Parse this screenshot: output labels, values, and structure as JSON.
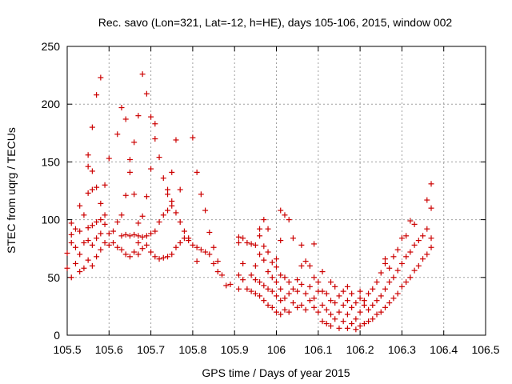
{
  "chart_data": {
    "type": "scatter",
    "title": "Rec. savo (Lon=321, Lat=-12, h=HE), days 105-106, 2015, window 002",
    "xlabel": "GPS time / Days of year 2015",
    "ylabel": "STEC from uqrg / TECUs",
    "xlim": [
      105.5,
      106.5
    ],
    "ylim": [
      0,
      250
    ],
    "x_ticks": [
      105.5,
      105.6,
      105.7,
      105.8,
      105.9,
      106,
      106.1,
      106.2,
      106.3,
      106.4,
      106.5
    ],
    "x_tick_labels": [
      "105.5",
      "105.6",
      "105.7",
      "105.8",
      "105.9",
      "106",
      "106.1",
      "106.2",
      "106.3",
      "106.4",
      "106.5"
    ],
    "y_ticks": [
      0,
      50,
      100,
      150,
      200,
      250
    ],
    "y_tick_labels": [
      "0",
      "50",
      "100",
      "150",
      "200",
      "250"
    ],
    "grid": true,
    "marker": "+",
    "color": "#cc0000",
    "series": [
      {
        "points": [
          [
            105.5,
            71
          ],
          [
            105.5,
            58
          ],
          [
            105.51,
            50
          ],
          [
            105.51,
            80
          ],
          [
            105.51,
            87
          ],
          [
            105.51,
            97
          ],
          [
            105.52,
            62
          ],
          [
            105.52,
            76
          ],
          [
            105.52,
            92
          ],
          [
            105.53,
            55
          ],
          [
            105.53,
            70
          ],
          [
            105.53,
            90
          ],
          [
            105.53,
            112
          ],
          [
            105.54,
            58
          ],
          [
            105.54,
            80
          ],
          [
            105.54,
            104
          ],
          [
            105.55,
            65
          ],
          [
            105.55,
            82
          ],
          [
            105.55,
            93
          ],
          [
            105.55,
            123
          ],
          [
            105.55,
            146
          ],
          [
            105.55,
            156
          ],
          [
            105.56,
            60
          ],
          [
            105.56,
            78
          ],
          [
            105.56,
            95
          ],
          [
            105.56,
            126
          ],
          [
            105.56,
            142
          ],
          [
            105.56,
            180
          ],
          [
            105.57,
            68
          ],
          [
            105.57,
            84
          ],
          [
            105.57,
            98
          ],
          [
            105.57,
            128
          ],
          [
            105.57,
            208
          ],
          [
            105.58,
            74
          ],
          [
            105.58,
            88
          ],
          [
            105.58,
            100
          ],
          [
            105.58,
            114
          ],
          [
            105.58,
            223
          ],
          [
            105.59,
            80
          ],
          [
            105.59,
            96
          ],
          [
            105.59,
            104
          ],
          [
            105.59,
            130
          ],
          [
            105.6,
            78
          ],
          [
            105.6,
            88
          ],
          [
            105.6,
            153
          ],
          [
            105.61,
            80
          ],
          [
            105.61,
            90
          ],
          [
            105.62,
            76
          ],
          [
            105.62,
            98
          ],
          [
            105.62,
            174
          ],
          [
            105.63,
            74
          ],
          [
            105.63,
            86
          ],
          [
            105.63,
            104
          ],
          [
            105.63,
            197
          ],
          [
            105.64,
            70
          ],
          [
            105.64,
            87
          ],
          [
            105.64,
            121
          ],
          [
            105.64,
            187
          ],
          [
            105.65,
            68
          ],
          [
            105.65,
            86
          ],
          [
            105.65,
            141
          ],
          [
            105.65,
            152
          ],
          [
            105.66,
            72
          ],
          [
            105.66,
            87
          ],
          [
            105.66,
            122
          ],
          [
            105.66,
            167
          ],
          [
            105.67,
            70
          ],
          [
            105.67,
            80
          ],
          [
            105.67,
            86
          ],
          [
            105.67,
            97
          ],
          [
            105.67,
            190
          ],
          [
            105.68,
            75
          ],
          [
            105.68,
            85
          ],
          [
            105.68,
            103
          ],
          [
            105.68,
            226
          ],
          [
            105.69,
            78
          ],
          [
            105.69,
            86
          ],
          [
            105.69,
            120
          ],
          [
            105.69,
            209
          ],
          [
            105.7,
            72
          ],
          [
            105.7,
            88
          ],
          [
            105.7,
            144
          ],
          [
            105.7,
            189
          ],
          [
            105.71,
            68
          ],
          [
            105.71,
            90
          ],
          [
            105.71,
            170
          ],
          [
            105.71,
            183
          ],
          [
            105.72,
            66
          ],
          [
            105.72,
            98
          ],
          [
            105.72,
            154
          ],
          [
            105.73,
            67
          ],
          [
            105.73,
            104
          ],
          [
            105.73,
            136
          ],
          [
            105.74,
            68
          ],
          [
            105.74,
            108
          ],
          [
            105.74,
            126
          ],
          [
            105.74,
            122
          ],
          [
            105.75,
            70
          ],
          [
            105.75,
            112
          ],
          [
            105.75,
            116
          ],
          [
            105.75,
            141
          ],
          [
            105.76,
            76
          ],
          [
            105.76,
            106
          ],
          [
            105.76,
            169
          ],
          [
            105.77,
            80
          ],
          [
            105.77,
            98
          ],
          [
            105.77,
            126
          ],
          [
            105.78,
            84
          ],
          [
            105.78,
            90
          ],
          [
            105.79,
            82
          ],
          [
            105.79,
            84
          ],
          [
            105.8,
            78
          ],
          [
            105.8,
            171
          ],
          [
            105.81,
            64
          ],
          [
            105.81,
            76
          ],
          [
            105.81,
            141
          ],
          [
            105.82,
            74
          ],
          [
            105.82,
            122
          ],
          [
            105.83,
            72
          ],
          [
            105.83,
            108
          ],
          [
            105.84,
            70
          ],
          [
            105.84,
            89
          ],
          [
            105.85,
            62
          ],
          [
            105.85,
            76
          ],
          [
            105.86,
            64
          ],
          [
            105.86,
            55
          ],
          [
            105.87,
            52
          ],
          [
            105.88,
            43
          ],
          [
            105.89,
            44
          ],
          [
            105.91,
            40
          ],
          [
            105.91,
            52
          ],
          [
            105.91,
            80
          ],
          [
            105.91,
            85
          ],
          [
            105.92,
            48
          ],
          [
            105.92,
            62
          ],
          [
            105.92,
            84
          ],
          [
            105.93,
            40
          ],
          [
            105.93,
            80
          ],
          [
            105.94,
            38
          ],
          [
            105.94,
            52
          ],
          [
            105.94,
            79
          ],
          [
            105.95,
            36
          ],
          [
            105.95,
            48
          ],
          [
            105.95,
            60
          ],
          [
            105.95,
            78
          ],
          [
            105.96,
            34
          ],
          [
            105.96,
            46
          ],
          [
            105.96,
            70
          ],
          [
            105.96,
            86
          ],
          [
            105.96,
            92
          ],
          [
            105.97,
            30
          ],
          [
            105.97,
            43
          ],
          [
            105.97,
            65
          ],
          [
            105.97,
            77
          ],
          [
            105.97,
            100
          ],
          [
            105.98,
            26
          ],
          [
            105.98,
            40
          ],
          [
            105.98,
            55
          ],
          [
            105.98,
            72
          ],
          [
            105.98,
            92
          ],
          [
            105.99,
            24
          ],
          [
            105.99,
            38
          ],
          [
            105.99,
            50
          ],
          [
            105.99,
            63
          ],
          [
            106.0,
            20
          ],
          [
            106.0,
            34
          ],
          [
            106.0,
            46
          ],
          [
            106.0,
            59
          ],
          [
            106.0,
            66
          ],
          [
            106.01,
            18
          ],
          [
            106.01,
            30
          ],
          [
            106.01,
            40
          ],
          [
            106.01,
            52
          ],
          [
            106.01,
            82
          ],
          [
            106.01,
            108
          ],
          [
            106.02,
            22
          ],
          [
            106.02,
            32
          ],
          [
            106.02,
            50
          ],
          [
            106.02,
            104
          ],
          [
            106.03,
            20
          ],
          [
            106.03,
            36
          ],
          [
            106.03,
            46
          ],
          [
            106.03,
            100
          ],
          [
            106.04,
            28
          ],
          [
            106.04,
            40
          ],
          [
            106.04,
            84
          ],
          [
            106.05,
            24
          ],
          [
            106.05,
            38
          ],
          [
            106.05,
            48
          ],
          [
            106.06,
            26
          ],
          [
            106.06,
            44
          ],
          [
            106.06,
            60
          ],
          [
            106.06,
            78
          ],
          [
            106.07,
            22
          ],
          [
            106.07,
            36
          ],
          [
            106.07,
            64
          ],
          [
            106.08,
            30
          ],
          [
            106.08,
            42
          ],
          [
            106.08,
            60
          ],
          [
            106.09,
            24
          ],
          [
            106.09,
            32
          ],
          [
            106.09,
            50
          ],
          [
            106.09,
            79
          ],
          [
            106.1,
            20
          ],
          [
            106.1,
            38
          ],
          [
            106.1,
            46
          ],
          [
            106.11,
            12
          ],
          [
            106.11,
            26
          ],
          [
            106.11,
            38
          ],
          [
            106.11,
            55
          ],
          [
            106.12,
            10
          ],
          [
            106.12,
            22
          ],
          [
            106.12,
            36
          ],
          [
            106.13,
            8
          ],
          [
            106.13,
            18
          ],
          [
            106.13,
            30
          ],
          [
            106.13,
            46
          ],
          [
            106.14,
            14
          ],
          [
            106.14,
            28
          ],
          [
            106.14,
            42
          ],
          [
            106.15,
            6
          ],
          [
            106.15,
            20
          ],
          [
            106.15,
            34
          ],
          [
            106.16,
            12
          ],
          [
            106.16,
            26
          ],
          [
            106.16,
            38
          ],
          [
            106.17,
            6
          ],
          [
            106.17,
            18
          ],
          [
            106.17,
            30
          ],
          [
            106.17,
            42
          ],
          [
            106.18,
            10
          ],
          [
            106.18,
            24
          ],
          [
            106.18,
            36
          ],
          [
            106.19,
            5
          ],
          [
            106.19,
            14
          ],
          [
            106.19,
            28
          ],
          [
            106.2,
            8
          ],
          [
            106.2,
            20
          ],
          [
            106.2,
            32
          ],
          [
            106.2,
            38
          ],
          [
            106.21,
            10
          ],
          [
            106.21,
            26
          ],
          [
            106.21,
            30
          ],
          [
            106.22,
            12
          ],
          [
            106.22,
            22
          ],
          [
            106.22,
            36
          ],
          [
            106.23,
            14
          ],
          [
            106.23,
            26
          ],
          [
            106.23,
            40
          ],
          [
            106.24,
            18
          ],
          [
            106.24,
            30
          ],
          [
            106.24,
            46
          ],
          [
            106.25,
            20
          ],
          [
            106.25,
            34
          ],
          [
            106.25,
            54
          ],
          [
            106.26,
            24
          ],
          [
            106.26,
            40
          ],
          [
            106.26,
            62
          ],
          [
            106.26,
            66
          ],
          [
            106.27,
            28
          ],
          [
            106.27,
            46
          ],
          [
            106.27,
            58
          ],
          [
            106.28,
            32
          ],
          [
            106.28,
            50
          ],
          [
            106.28,
            68
          ],
          [
            106.29,
            36
          ],
          [
            106.29,
            56
          ],
          [
            106.29,
            74
          ],
          [
            106.3,
            42
          ],
          [
            106.3,
            62
          ],
          [
            106.3,
            84
          ],
          [
            106.31,
            46
          ],
          [
            106.31,
            68
          ],
          [
            106.31,
            86
          ],
          [
            106.32,
            50
          ],
          [
            106.32,
            72
          ],
          [
            106.32,
            99
          ],
          [
            106.33,
            56
          ],
          [
            106.33,
            78
          ],
          [
            106.33,
            96
          ],
          [
            106.34,
            60
          ],
          [
            106.34,
            82
          ],
          [
            106.35,
            66
          ],
          [
            106.35,
            86
          ],
          [
            106.36,
            70
          ],
          [
            106.36,
            92
          ],
          [
            106.36,
            117
          ],
          [
            106.37,
            76
          ],
          [
            106.37,
            84
          ],
          [
            106.37,
            110
          ],
          [
            106.37,
            131
          ]
        ]
      }
    ]
  }
}
